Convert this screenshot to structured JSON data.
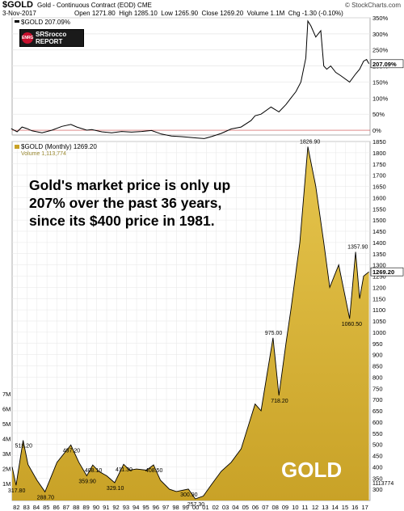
{
  "header": {
    "symbol": "$GOLD",
    "description": "Gold - Continuous Contract (EOD) CME",
    "source": "© StockCharts.com",
    "date": "3-Nov-2017",
    "open_label": "Open",
    "open": "1271.80",
    "high_label": "High",
    "high": "1285.10",
    "low_label": "Low",
    "low": "1265.90",
    "close_label": "Close",
    "close": "1269.20",
    "volume_label": "Volume",
    "volume": "1.1M",
    "chg_label": "Chg",
    "chg": "-1.30 (-0.10%)"
  },
  "logo": {
    "badge": "ENRG",
    "line1": "SRSrocco",
    "line2": "REPORT"
  },
  "overlay_text": [
    "Gold's market price is only up",
    "207% over the past 36 years,",
    "since its $400 price in 1981."
  ],
  "watermark": "GOLD",
  "colors": {
    "price_line": "#000000",
    "area_fill": "#c9a227",
    "grid": "#e6e6e6",
    "zero_line": "#cc4444"
  },
  "chart_data": [
    {
      "type": "line",
      "legend": "$GOLD 207.09%",
      "y_unit": "%",
      "ylim": [
        -15,
        350
      ],
      "y_ticks": [
        "350%",
        "300%",
        "250%",
        "200%",
        "150%",
        "100%",
        "50%",
        "0%"
      ],
      "last_value_label": "207.09%",
      "x": [
        1981.9,
        1982.5,
        1983.0,
        1983.5,
        1984.0,
        1985.0,
        1986.0,
        1987.0,
        1987.9,
        1988.5,
        1989.5,
        1990.0,
        1991.0,
        1992.0,
        1993.0,
        1994.0,
        1995.0,
        1996.0,
        1997.0,
        1998.0,
        1999.0,
        1999.7,
        2000.5,
        2001.3,
        2002.0,
        2003.0,
        2004.0,
        2005.0,
        2006.0,
        2006.4,
        2007.0,
        2008.0,
        2008.8,
        2009.5,
        2010.0,
        2010.5,
        2011.0,
        2011.5,
        2011.7,
        2012.0,
        2012.5,
        2013.0,
        2013.3,
        2013.6,
        2014.0,
        2014.5,
        2015.0,
        2015.9,
        2016.5,
        2016.9,
        2017.3,
        2017.6,
        2017.84
      ],
      "values": [
        5,
        -5,
        10,
        5,
        -2,
        -8,
        0,
        12,
        18,
        10,
        0,
        2,
        -5,
        -8,
        -4,
        -6,
        -4,
        -1,
        -12,
        -18,
        -20,
        -22,
        -24,
        -26,
        -20,
        -10,
        4,
        10,
        30,
        45,
        50,
        72,
        57,
        80,
        100,
        120,
        150,
        225,
        340,
        325,
        290,
        310,
        200,
        190,
        200,
        180,
        170,
        150,
        175,
        190,
        215,
        220,
        207
      ]
    },
    {
      "type": "area",
      "legend": "$GOLD (Monthly) 1269.20",
      "volume_legend": "Volume 1,113,774",
      "ylim": [
        250,
        1850
      ],
      "y_ticks": [
        1850,
        1800,
        1750,
        1700,
        1650,
        1600,
        1550,
        1500,
        1450,
        1400,
        1350,
        1300,
        1250,
        1200,
        1150,
        1100,
        1050,
        1000,
        950,
        900,
        850,
        800,
        750,
        700,
        650,
        600,
        550,
        500,
        450,
        400,
        350,
        300
      ],
      "volume_ticks": [
        "7M",
        "6M",
        "5M",
        "4M",
        "3M",
        "2M",
        "1M"
      ],
      "last_value_label": "1269.20",
      "volume_last_label": "1113774",
      "x_ticks": [
        "82",
        "83",
        "84",
        "85",
        "86",
        "87",
        "88",
        "89",
        "90",
        "91",
        "92",
        "93",
        "94",
        "95",
        "96",
        "97",
        "98",
        "99",
        "00",
        "01",
        "02",
        "03",
        "04",
        "05",
        "06",
        "07",
        "08",
        "09",
        "10",
        "11",
        "12",
        "13",
        "14",
        "15",
        "16",
        "17"
      ],
      "x": [
        1982.0,
        1982.4,
        1983.1,
        1983.6,
        1984.5,
        1985.3,
        1986.5,
        1987.9,
        1988.7,
        1989.5,
        1990.1,
        1990.7,
        1991.5,
        1992.3,
        1993.2,
        1993.8,
        1994.5,
        1995.5,
        1996.2,
        1996.9,
        1997.8,
        1998.5,
        1999.7,
        2000.4,
        2001.2,
        2002.0,
        2003.0,
        2004.0,
        2005.0,
        2006.4,
        2007.0,
        2008.2,
        2008.8,
        2009.5,
        2010.0,
        2010.9,
        2011.7,
        2012.5,
        2013.3,
        2013.9,
        2014.8,
        2015.9,
        2016.5,
        2016.9,
        2017.3,
        2017.84
      ],
      "values": [
        400,
        317.8,
        518.2,
        410,
        340,
        288.7,
        420,
        497.2,
        420,
        359.9,
        408.1,
        380,
        360,
        329.1,
        411.3,
        385,
        390,
        385,
        408.5,
        340,
        300,
        290,
        300.9,
        257.3,
        270,
        320,
        380,
        420,
        480,
        680,
        650,
        975,
        718.2,
        950,
        1100,
        1400,
        1826.9,
        1650,
        1400,
        1200,
        1300,
        1060.5,
        1357.9,
        1150,
        1250,
        1269.2
      ],
      "annotations": [
        {
          "x": 1982.4,
          "y": 317.8,
          "label": "317.80"
        },
        {
          "x": 1983.1,
          "y": 518.2,
          "label": "518.20"
        },
        {
          "x": 1985.3,
          "y": 288.7,
          "label": "288.70"
        },
        {
          "x": 1987.9,
          "y": 497.2,
          "label": "497.20"
        },
        {
          "x": 1989.5,
          "y": 359.9,
          "label": "359.90"
        },
        {
          "x": 1990.1,
          "y": 408.1,
          "label": "408.10"
        },
        {
          "x": 1992.3,
          "y": 329.1,
          "label": "329.10"
        },
        {
          "x": 1993.2,
          "y": 411.3,
          "label": "411.30"
        },
        {
          "x": 1996.2,
          "y": 408.5,
          "label": "408.50"
        },
        {
          "x": 1999.7,
          "y": 300.9,
          "label": "300.90"
        },
        {
          "x": 2000.4,
          "y": 257.3,
          "label": "257.30"
        },
        {
          "x": 2008.2,
          "y": 975,
          "label": "975.00"
        },
        {
          "x": 2008.8,
          "y": 718.2,
          "label": "718.20"
        },
        {
          "x": 2011.7,
          "y": 1826.9,
          "label": "1826.90"
        },
        {
          "x": 2015.9,
          "y": 1060.5,
          "label": "1060.50"
        },
        {
          "x": 2016.5,
          "y": 1357.9,
          "label": "1357.90"
        }
      ]
    }
  ]
}
